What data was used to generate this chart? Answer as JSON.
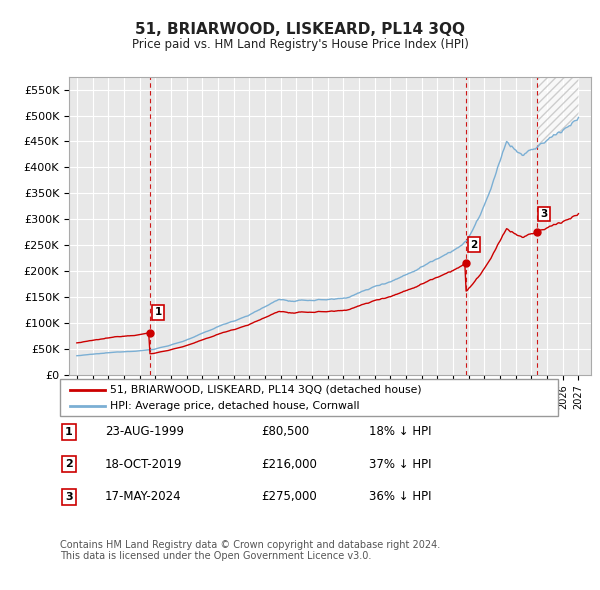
{
  "title": "51, BRIARWOOD, LISKEARD, PL14 3QQ",
  "subtitle": "Price paid vs. HM Land Registry's House Price Index (HPI)",
  "hpi_color": "#7bafd4",
  "price_color": "#cc0000",
  "vline_color": "#cc0000",
  "background_color": "#e8e8e8",
  "grid_color": "#ffffff",
  "ylim": [
    0,
    575000
  ],
  "yticks": [
    0,
    50000,
    100000,
    150000,
    200000,
    250000,
    300000,
    350000,
    400000,
    450000,
    500000,
    550000
  ],
  "xlim_start": 1994.5,
  "xlim_end": 2027.8,
  "sale_dates": [
    1999.646,
    2019.796,
    2024.38
  ],
  "sale_prices": [
    80500,
    216000,
    275000
  ],
  "sale_labels": [
    "1",
    "2",
    "3"
  ],
  "legend_label_red": "51, BRIARWOOD, LISKEARD, PL14 3QQ (detached house)",
  "legend_label_blue": "HPI: Average price, detached house, Cornwall",
  "table_rows": [
    [
      "1",
      "23-AUG-1999",
      "£80,500",
      "18% ↓ HPI"
    ],
    [
      "2",
      "18-OCT-2019",
      "£216,000",
      "37% ↓ HPI"
    ],
    [
      "3",
      "17-MAY-2024",
      "£275,000",
      "36% ↓ HPI"
    ]
  ],
  "footer": "Contains HM Land Registry data © Crown copyright and database right 2024.\nThis data is licensed under the Open Government Licence v3.0."
}
